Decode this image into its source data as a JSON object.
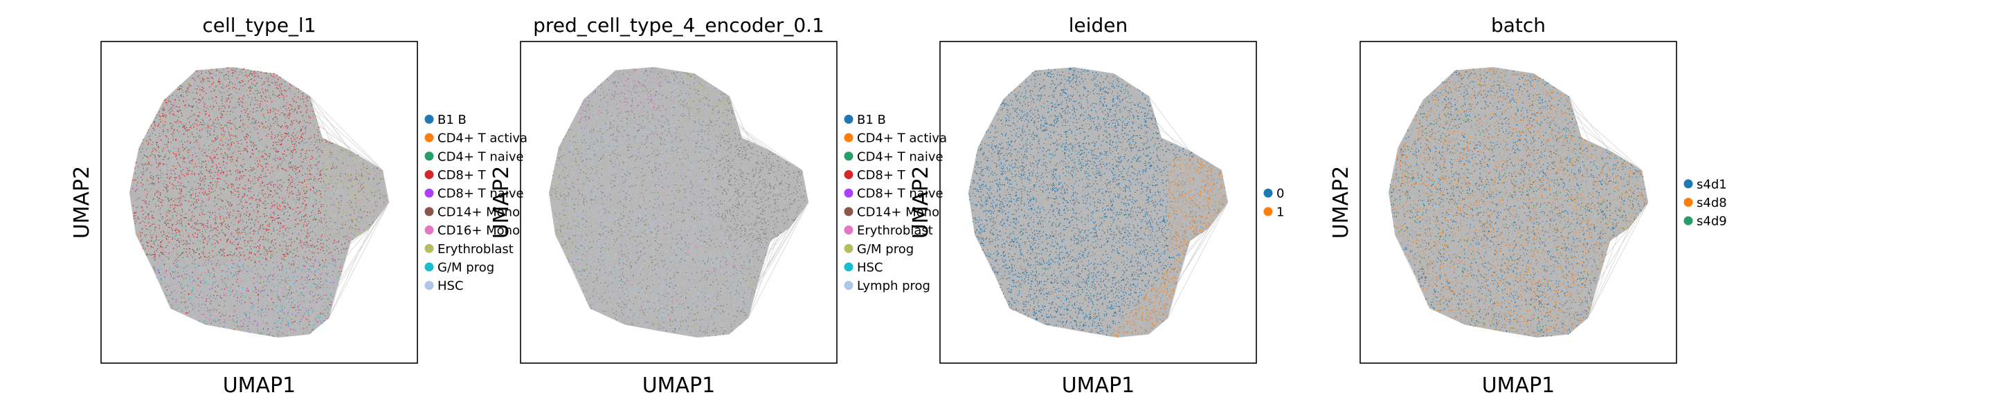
{
  "colors": {
    "tab10": [
      "#1f77b4",
      "#ff7f0e",
      "#279e68",
      "#d62728",
      "#aa40fc",
      "#8c564b",
      "#e377c2",
      "#b5bd61",
      "#17becf",
      "#aec7e8"
    ],
    "background_points": "#808080",
    "edges": "#b0b0b0"
  },
  "chart_data": [
    {
      "type": "scatter",
      "title": "cell_type_l1",
      "xlabel": "UMAP1",
      "ylabel": "UMAP2",
      "grid": false,
      "ticks": false,
      "legend_placement": "right",
      "legend": [
        "B1 B",
        "CD4+ T activa",
        "CD4+ T naive",
        "CD8+ T",
        "CD8+ T naive",
        "CD14+ Mono",
        "CD16+ Mono",
        "Erythroblast",
        "G/M prog",
        "HSC"
      ],
      "legend_colors": [
        "#1f77b4",
        "#ff7f0e",
        "#279e68",
        "#d62728",
        "#aa40fc",
        "#8c564b",
        "#e377c2",
        "#b5bd61",
        "#17becf",
        "#aec7e8"
      ],
      "dominant_regions": [
        {
          "category": "CD8+ T",
          "region": "left and center-top"
        },
        {
          "category": "Erythroblast",
          "region": "right"
        },
        {
          "category": "HSC",
          "region": "bottom"
        }
      ]
    },
    {
      "type": "scatter",
      "title": "pred_cell_type_4_encoder_0.1",
      "xlabel": "UMAP1",
      "ylabel": "UMAP2",
      "grid": false,
      "ticks": false,
      "legend_placement": "right",
      "legend": [
        "B1 B",
        "CD4+ T activa",
        "CD4+ T naive",
        "CD8+ T",
        "CD8+ T naive",
        "CD14+ Mono",
        "Erythroblast",
        "G/M prog",
        "HSC",
        "Lymph prog"
      ],
      "legend_colors": [
        "#1f77b4",
        "#ff7f0e",
        "#279e68",
        "#d62728",
        "#aa40fc",
        "#8c564b",
        "#e377c2",
        "#b5bd61",
        "#17becf",
        "#aec7e8"
      ],
      "dominant_regions": [
        {
          "category": "Lymph prog",
          "region": "most of the cloud"
        },
        {
          "category": "Erythroblast",
          "region": "top-left"
        },
        {
          "category": "G/M prog",
          "region": "top and left edge"
        }
      ]
    },
    {
      "type": "scatter",
      "title": "leiden",
      "xlabel": "UMAP1",
      "ylabel": "UMAP2",
      "grid": false,
      "ticks": false,
      "legend_placement": "right",
      "legend": [
        "0",
        "1"
      ],
      "legend_colors": [
        "#1f77b4",
        "#ff7f0e"
      ],
      "dominant_regions": [
        {
          "category": "0",
          "region": "left and top"
        },
        {
          "category": "1",
          "region": "bottom-right"
        }
      ]
    },
    {
      "type": "scatter",
      "title": "batch",
      "xlabel": "UMAP1",
      "ylabel": "UMAP2",
      "grid": false,
      "ticks": false,
      "legend_placement": "right",
      "legend": [
        "s4d1",
        "s4d8",
        "s4d9"
      ],
      "legend_colors": [
        "#1f77b4",
        "#ff7f0e",
        "#279e68"
      ],
      "dominant_regions": [
        {
          "category": "s4d8",
          "region": "mixed throughout"
        },
        {
          "category": "s4d1",
          "region": "mixed throughout"
        },
        {
          "category": "s4d9",
          "region": "sparse, mixed"
        }
      ]
    }
  ]
}
